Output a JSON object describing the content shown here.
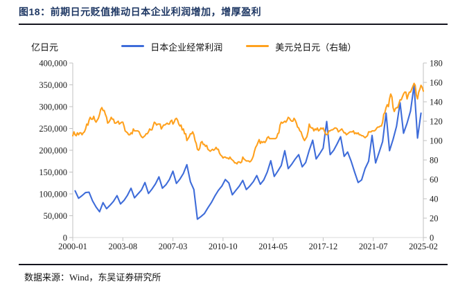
{
  "header": {
    "title": "图18：前期日元贬值推动日本企业利润增加，增厚盈利"
  },
  "footer": {
    "source": "数据来源：Wind，东吴证券研究所"
  },
  "colors": {
    "title_text": "#1F3864",
    "rule": "#14141E",
    "axis_line": "#C0C0C0",
    "bottom_axis_line": "#D9D9D9",
    "tick_text": "#1A1A1A",
    "profit_line": "#3E6CD9",
    "usdjpy_line": "#FFA11E"
  },
  "chart_data": {
    "type": "line",
    "title": "图18：前期日元贬值推动日本企业利润增加，增厚盈利",
    "unit_label": "亿日元",
    "legend_position": "top",
    "grid": false,
    "x_tick_labels": [
      "2000-01",
      "2003-08",
      "2007-03",
      "2010-10",
      "2014-05",
      "2017-12",
      "2021-07",
      "2025-02"
    ],
    "x_tick_months": [
      0,
      43,
      86,
      129,
      172,
      215,
      258,
      301
    ],
    "x_total_months": 301,
    "left_axis": {
      "min": 0,
      "max": 400000,
      "tick_labels": [
        "400,000",
        "350,000",
        "300,000",
        "250,000",
        "200,000",
        "150,000",
        "100,000",
        "50,000",
        "0"
      ]
    },
    "right_axis": {
      "min": 0,
      "max": 180,
      "tick_labels": [
        "180",
        "160",
        "140",
        "120",
        "100",
        "80",
        "60",
        "40",
        "20",
        "0"
      ]
    },
    "series": [
      {
        "name": "日本企业经常利润",
        "axis": "left",
        "color": "#3E6CD9",
        "frequency": "quarterly",
        "start": "2000-03",
        "values": [
          107000,
          90000,
          96000,
          103000,
          104000,
          84000,
          70000,
          59000,
          80000,
          66000,
          74000,
          83000,
          96000,
          77000,
          85000,
          97000,
          113000,
          91000,
          100000,
          109000,
          126000,
          101000,
          111000,
          123000,
          139000,
          113000,
          121000,
          133000,
          152000,
          124000,
          134000,
          147000,
          167000,
          128000,
          110000,
          42000,
          48000,
          55000,
          68000,
          80000,
          95000,
          108000,
          118000,
          133000,
          125000,
          98000,
          108000,
          118000,
          131000,
          110000,
          118000,
          128000,
          142000,
          122000,
          132000,
          150000,
          176000,
          140000,
          152000,
          165000,
          199000,
          158000,
          168000,
          180000,
          190000,
          162000,
          172000,
          200000,
          223000,
          180000,
          192000,
          205000,
          266000,
          190000,
          200000,
          215000,
          231000,
          186000,
          196000,
          175000,
          150000,
          126000,
          132000,
          158000,
          175000,
          234000,
          171000,
          195000,
          220000,
          285000,
          199000,
          225000,
          255000,
          309000,
          239000,
          262000,
          290000,
          349000,
          228000,
          285000
        ]
      },
      {
        "name": "美元兑日元（右轴）",
        "axis": "right",
        "color": "#FFA11E",
        "frequency": "monthly",
        "start": "2000-01",
        "values": [
          105,
          109,
          106,
          105,
          108,
          106,
          108,
          108,
          106,
          108,
          109,
          112,
          117,
          116,
          121,
          124,
          122,
          122,
          125,
          121,
          119,
          121,
          123,
          127,
          132,
          134,
          131,
          131,
          127,
          124,
          118,
          119,
          121,
          124,
          122,
          122,
          118,
          118,
          119,
          120,
          117,
          118,
          119,
          119,
          115,
          110,
          109,
          108,
          106,
          106,
          108,
          107,
          112,
          110,
          110,
          110,
          110,
          109,
          106,
          104,
          103,
          104,
          105,
          107,
          107,
          109,
          112,
          111,
          111,
          115,
          119,
          118,
          116,
          117,
          117,
          117,
          112,
          114,
          116,
          116,
          117,
          118,
          117,
          117,
          120,
          121,
          117,
          119,
          122,
          123,
          121,
          117,
          115,
          116,
          111,
          112,
          107,
          107,
          100,
          102,
          104,
          107,
          107,
          109,
          106,
          100,
          97,
          91,
          90,
          92,
          98,
          99,
          96,
          96,
          94,
          95,
          91,
          90,
          89,
          90,
          91,
          90,
          91,
          93,
          91,
          91,
          87,
          85,
          84,
          82,
          83,
          83,
          82,
          82,
          81,
          83,
          81,
          80,
          79,
          77,
          77,
          76,
          78,
          78,
          77,
          78,
          83,
          81,
          80,
          79,
          79,
          79,
          78,
          79,
          81,
          84,
          89,
          93,
          95,
          98,
          101,
          97,
          99,
          98,
          99,
          98,
          100,
          103,
          104,
          102,
          102,
          102,
          102,
          102,
          102,
          103,
          107,
          108,
          116,
          119,
          118,
          119,
          120,
          119,
          121,
          124,
          123,
          121,
          120,
          120,
          123,
          121,
          118,
          114,
          113,
          110,
          109,
          105,
          102,
          100,
          102,
          104,
          109,
          117,
          114,
          113,
          113,
          110,
          112,
          111,
          113,
          110,
          111,
          113,
          112,
          113,
          110,
          107,
          106,
          107,
          110,
          110,
          111,
          111,
          112,
          113,
          113,
          112,
          109,
          110,
          111,
          112,
          110,
          108,
          108,
          106,
          107,
          108,
          109,
          109,
          109,
          110,
          107,
          108,
          107,
          108,
          106,
          106,
          105,
          105,
          104,
          103,
          104,
          105,
          109,
          109,
          109,
          110,
          110,
          110,
          111,
          113,
          114,
          114,
          115,
          115,
          119,
          127,
          129,
          134,
          137,
          135,
          143,
          148,
          145,
          134,
          130,
          133,
          134,
          134,
          138,
          142,
          142,
          145,
          148,
          150,
          150,
          143,
          147,
          150,
          150,
          153,
          156,
          159,
          157,
          147,
          143,
          150,
          153,
          157,
          155,
          151
        ]
      }
    ]
  }
}
